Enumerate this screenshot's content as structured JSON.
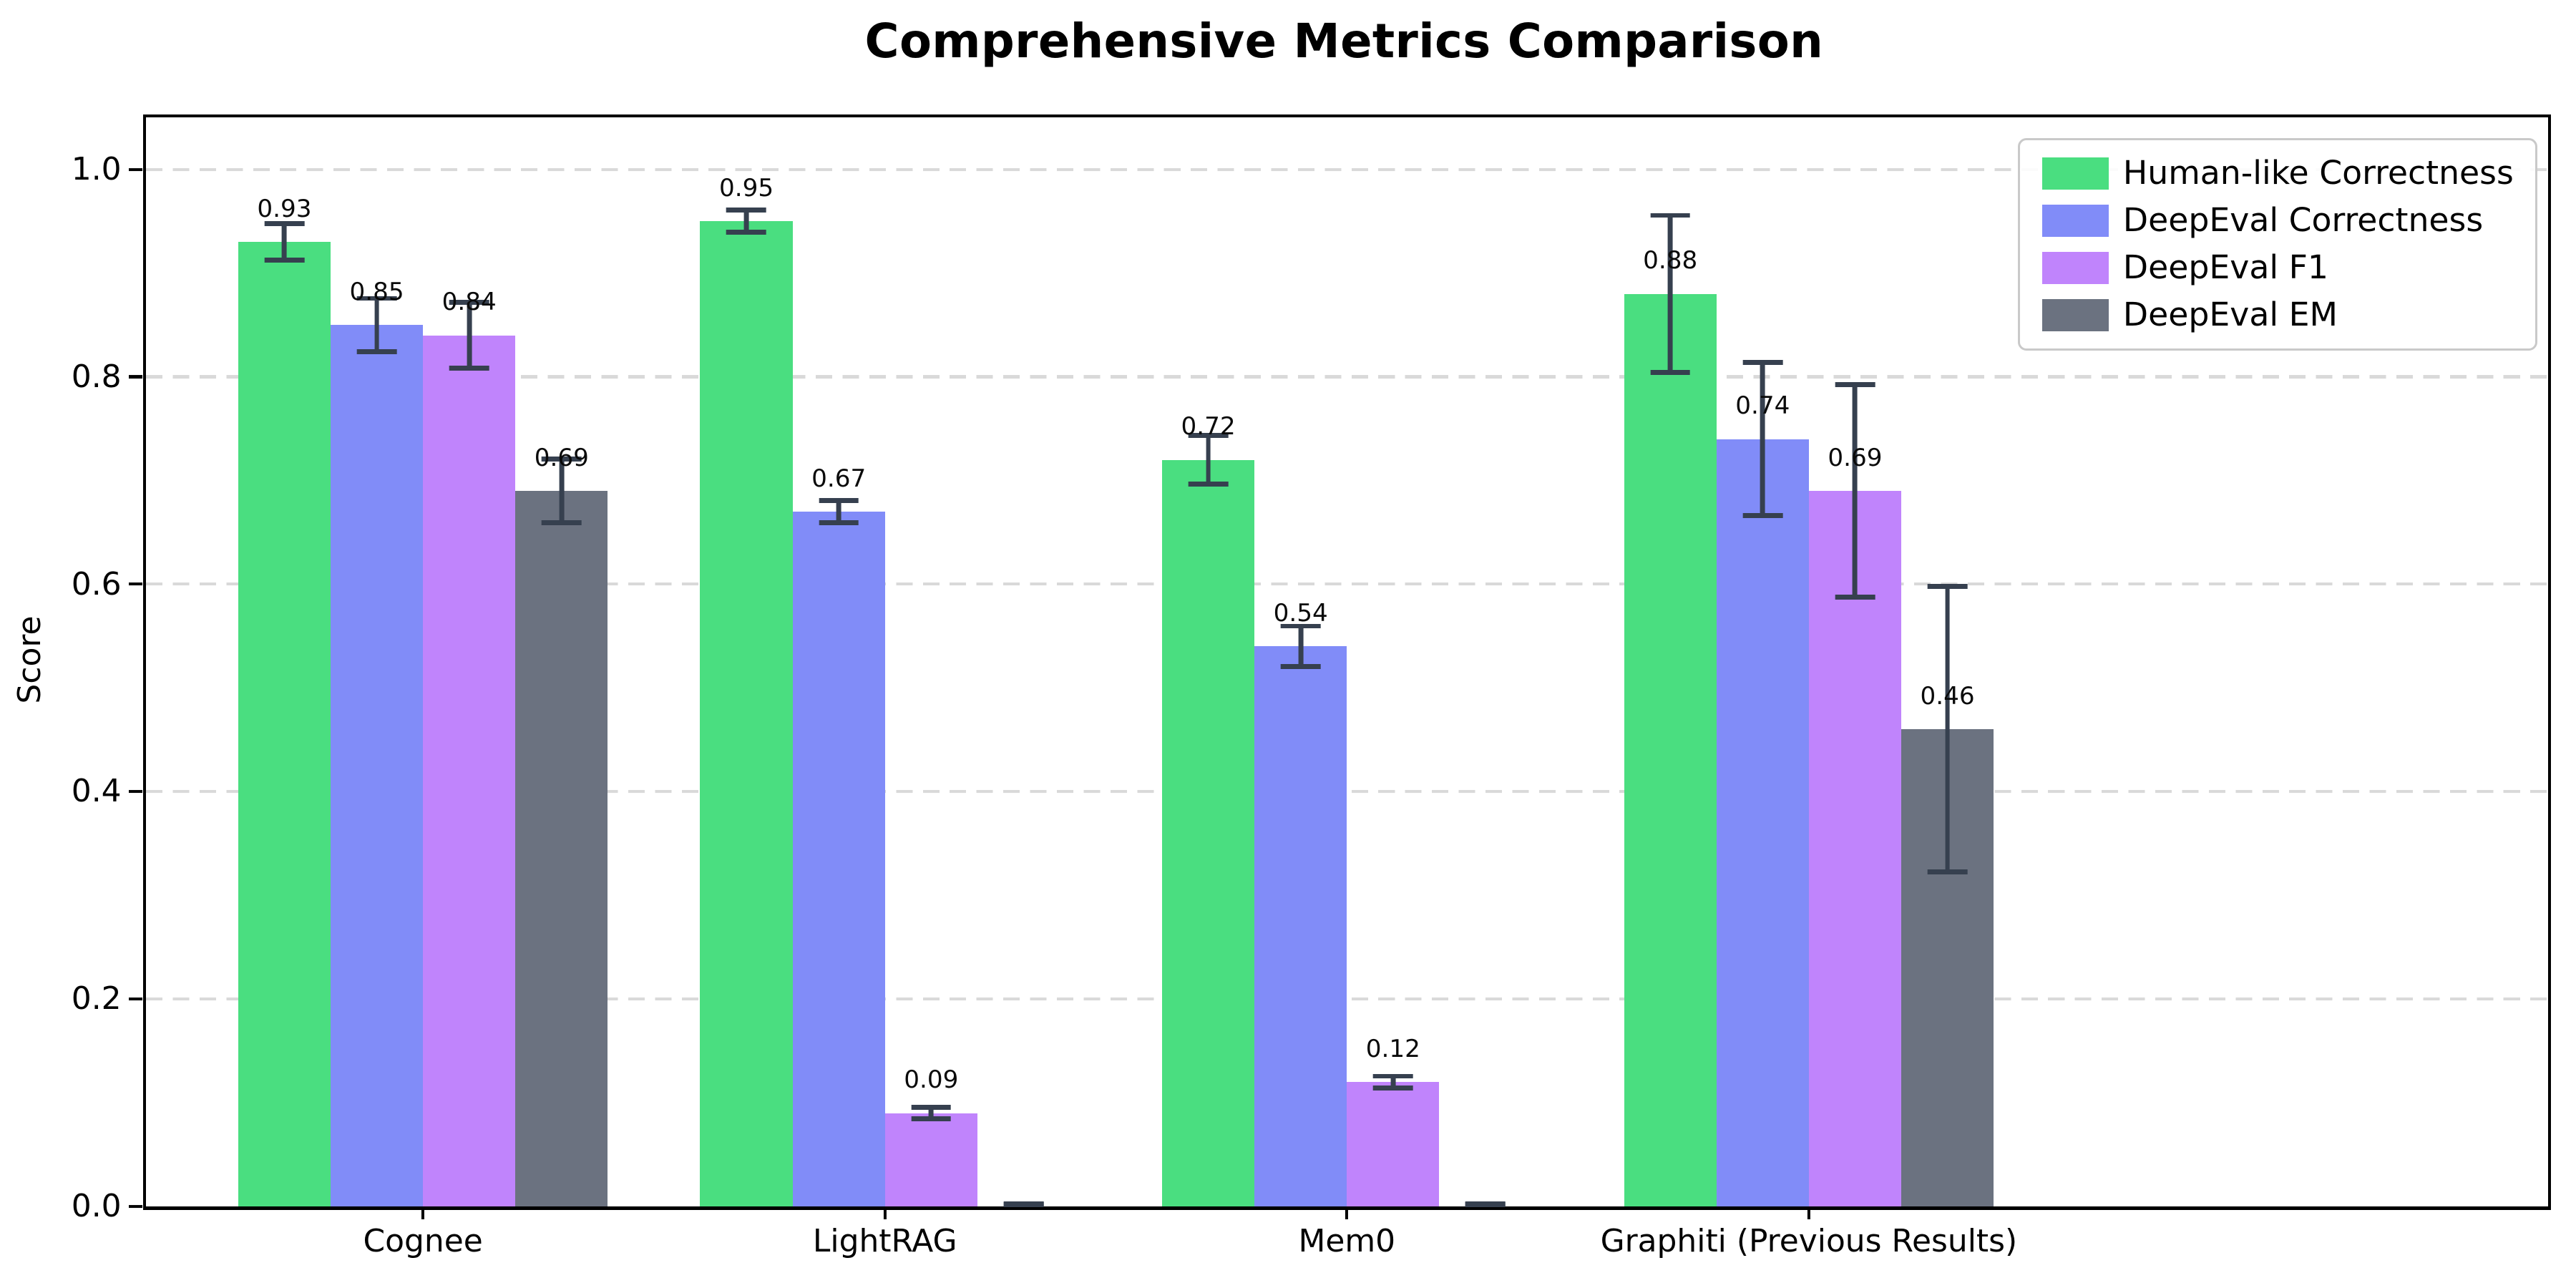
{
  "chart_data": {
    "type": "bar",
    "title": "Comprehensive Metrics Comparison",
    "xlabel": "",
    "ylabel": "Score",
    "categories": [
      "Cognee",
      "LightRAG",
      "Mem0",
      "Graphiti (Previous Results)"
    ],
    "series": [
      {
        "name": "Human-like Correctness",
        "color": "#4ade80",
        "values": [
          0.93,
          0.95,
          0.72,
          0.88
        ],
        "errors": [
          0.02,
          0.013,
          0.026,
          0.078
        ],
        "labels": [
          "0.93",
          "0.95",
          "0.72",
          "0.88"
        ]
      },
      {
        "name": "DeepEval Correctness",
        "color": "#818cf8",
        "values": [
          0.85,
          0.67,
          0.54,
          0.74
        ],
        "errors": [
          0.028,
          0.013,
          0.022,
          0.076
        ],
        "labels": [
          "0.85",
          "0.67",
          "0.54",
          "0.74"
        ]
      },
      {
        "name": "DeepEval F1",
        "color": "#c084fc",
        "values": [
          0.84,
          0.09,
          0.12,
          0.69
        ],
        "errors": [
          0.034,
          0.008,
          0.008,
          0.105
        ],
        "labels": [
          "0.84",
          "0.09",
          "0.12",
          "0.69"
        ]
      },
      {
        "name": "DeepEval EM",
        "color": "#6b7280",
        "values": [
          0.69,
          0.0,
          0.0,
          0.46
        ],
        "errors": [
          0.033,
          0.004,
          0.004,
          0.14
        ],
        "labels": [
          "0.69",
          null,
          null,
          "0.46"
        ]
      }
    ],
    "yticks": [
      "0.0",
      "0.2",
      "0.4",
      "0.6",
      "0.8",
      "1.0"
    ],
    "ytick_values": [
      0.0,
      0.2,
      0.4,
      0.6,
      0.8,
      1.0
    ],
    "ylim": [
      0,
      1.05
    ],
    "value_label_offset": 0.02,
    "grid": "horizontal-dashed",
    "gridline_color": "#d9d9d9",
    "errorbar_color": "#36404f",
    "legend_position": "upper right"
  }
}
